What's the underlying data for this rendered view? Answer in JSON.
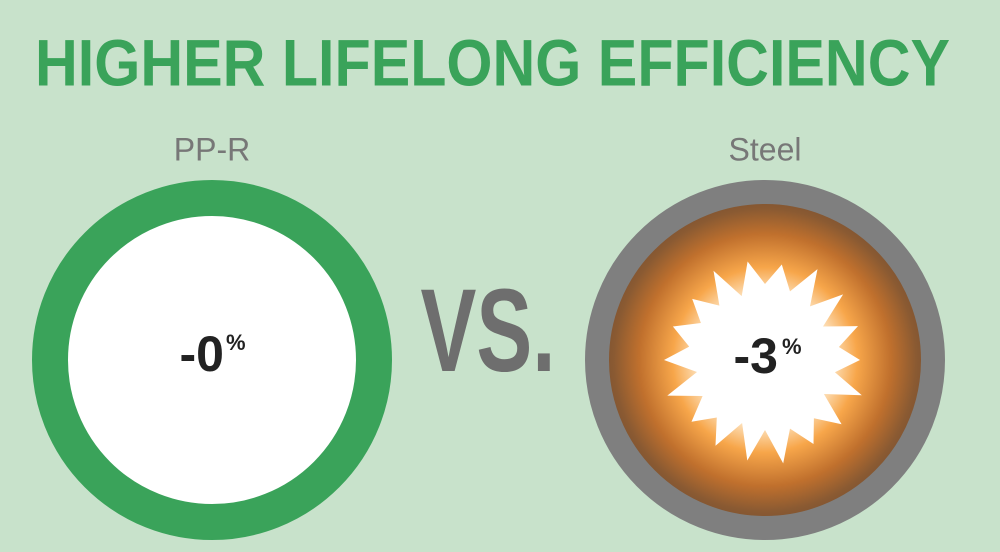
{
  "title": "HIGHER LIFELONG EFFICIENCY",
  "left": {
    "label": "PP-R",
    "value": "-0",
    "unit": "%"
  },
  "vs": "VS.",
  "right": {
    "label": "Steel",
    "value": "-3",
    "unit": "%"
  }
}
